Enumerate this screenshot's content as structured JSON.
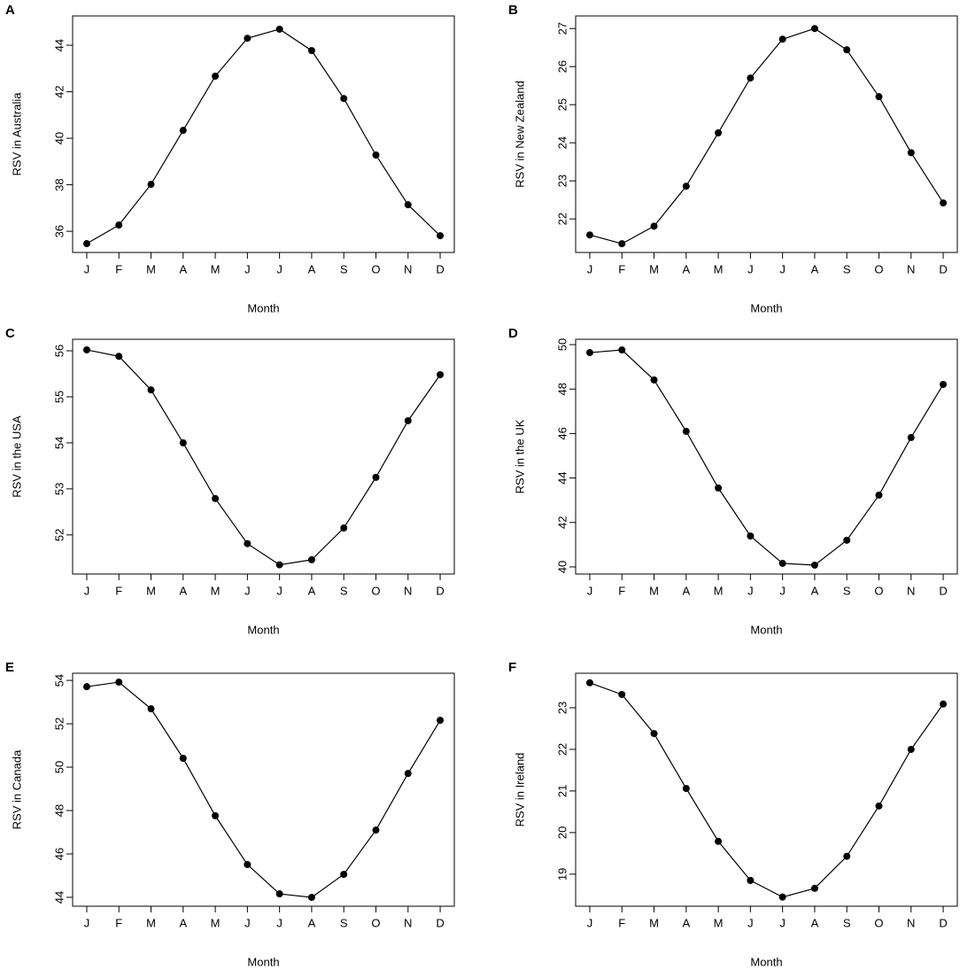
{
  "chart_data": [
    {
      "type": "line",
      "panel": "A",
      "ylabel": "RSV in Australia",
      "xlabel": "Month",
      "categories": [
        "J",
        "F",
        "M",
        "A",
        "M",
        "J",
        "J",
        "A",
        "S",
        "O",
        "N",
        "D"
      ],
      "values": [
        35.47,
        36.27,
        38.02,
        40.34,
        42.67,
        44.3,
        44.69,
        43.77,
        41.71,
        39.28,
        37.14,
        35.81
      ],
      "ylim": [
        35.09,
        45.26
      ],
      "yticks": [
        36,
        38,
        40,
        42,
        44
      ],
      "color": "#000000"
    },
    {
      "type": "line",
      "panel": "B",
      "ylabel": "RSV in New Zealand",
      "xlabel": "Month",
      "categories": [
        "J",
        "F",
        "M",
        "A",
        "M",
        "J",
        "J",
        "A",
        "S",
        "O",
        "N",
        "D"
      ],
      "values": [
        21.58,
        21.35,
        21.81,
        22.86,
        24.26,
        25.7,
        26.72,
        27.0,
        26.44,
        25.21,
        23.74,
        22.42
      ],
      "ylim": [
        21.12,
        27.33
      ],
      "yticks": [
        22,
        23,
        24,
        25,
        26,
        27
      ],
      "color": "#000000"
    },
    {
      "type": "line",
      "panel": "C",
      "ylabel": "RSV in the USA",
      "xlabel": "Month",
      "categories": [
        "J",
        "F",
        "M",
        "A",
        "M",
        "J",
        "J",
        "A",
        "S",
        "O",
        "N",
        "D"
      ],
      "values": [
        56.02,
        55.88,
        55.15,
        54.0,
        52.79,
        51.81,
        51.35,
        51.46,
        52.15,
        53.25,
        54.48,
        55.48
      ],
      "ylim": [
        51.15,
        56.25
      ],
      "yticks": [
        52,
        53,
        54,
        55,
        56
      ],
      "color": "#000000"
    },
    {
      "type": "line",
      "panel": "D",
      "ylabel": "RSV in the UK",
      "xlabel": "Month",
      "categories": [
        "J",
        "F",
        "M",
        "A",
        "M",
        "J",
        "J",
        "A",
        "S",
        "O",
        "N",
        "D"
      ],
      "values": [
        49.64,
        49.76,
        48.41,
        46.1,
        43.55,
        41.39,
        40.16,
        40.08,
        41.2,
        43.23,
        45.82,
        48.21
      ],
      "ylim": [
        39.68,
        50.24
      ],
      "yticks": [
        40,
        42,
        44,
        46,
        48,
        50
      ],
      "color": "#000000"
    },
    {
      "type": "line",
      "panel": "E",
      "ylabel": "RSV in Canada",
      "xlabel": "Month",
      "categories": [
        "J",
        "F",
        "M",
        "A",
        "M",
        "J",
        "J",
        "A",
        "S",
        "O",
        "N",
        "D"
      ],
      "values": [
        53.71,
        53.92,
        52.69,
        50.41,
        47.76,
        45.51,
        44.16,
        44.0,
        45.06,
        47.1,
        49.71,
        52.16
      ],
      "ylim": [
        43.59,
        54.33
      ],
      "yticks": [
        44,
        46,
        48,
        50,
        52,
        54
      ],
      "color": "#000000"
    },
    {
      "type": "line",
      "panel": "F",
      "ylabel": "RSV in Ireland",
      "xlabel": "Month",
      "categories": [
        "J",
        "F",
        "M",
        "A",
        "M",
        "J",
        "J",
        "A",
        "S",
        "O",
        "N",
        "D"
      ],
      "values": [
        23.6,
        23.32,
        22.38,
        21.06,
        19.79,
        18.85,
        18.45,
        18.66,
        19.43,
        20.64,
        22.0,
        23.09
      ],
      "ylim": [
        18.23,
        23.83
      ],
      "yticks": [
        19,
        20,
        21,
        22,
        23
      ],
      "color": "#000000"
    }
  ]
}
